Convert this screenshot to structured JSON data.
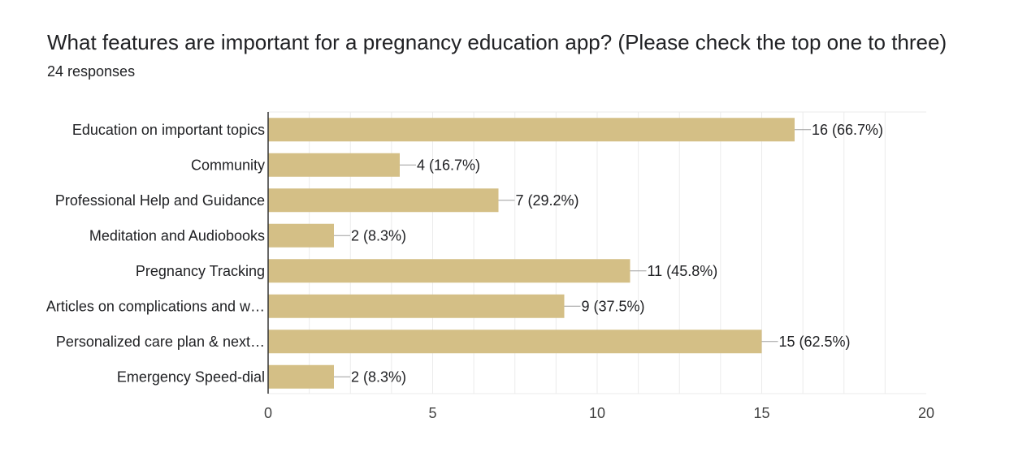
{
  "header": {
    "title": "What features are important for a pregnancy education app? (Please check the top one to three)",
    "subtitle": "24 responses"
  },
  "colors": {
    "bar": "#d4bf86",
    "grid": "#ebebeb",
    "axis": "#333333",
    "connector": "#9e9e9e"
  },
  "chart_data": {
    "type": "bar",
    "orientation": "horizontal",
    "title": "What features are important for a pregnancy education app? (Please check the top one to three)",
    "subtitle": "24 responses",
    "categories": [
      "Education on important topics",
      "Community",
      "Professional Help and Guidance",
      "Meditation and Audiobooks",
      "Pregnancy Tracking",
      "Articles on complications and w…",
      "Personalized care plan & next…",
      "Emergency Speed-dial"
    ],
    "values": [
      16,
      4,
      7,
      2,
      11,
      9,
      15,
      2
    ],
    "data_labels": [
      "16 (66.7%)",
      "4 (16.7%)",
      "7 (29.2%)",
      "2 (8.3%)",
      "11 (45.8%)",
      "9 (37.5%)",
      "15 (62.5%)",
      "2 (8.3%)"
    ],
    "xlim": [
      0,
      20
    ],
    "xticks": [
      0,
      5,
      10,
      15,
      20
    ],
    "xtick_labels": [
      "0",
      "5",
      "10",
      "15",
      "20"
    ],
    "grid": true,
    "legend": "none"
  }
}
